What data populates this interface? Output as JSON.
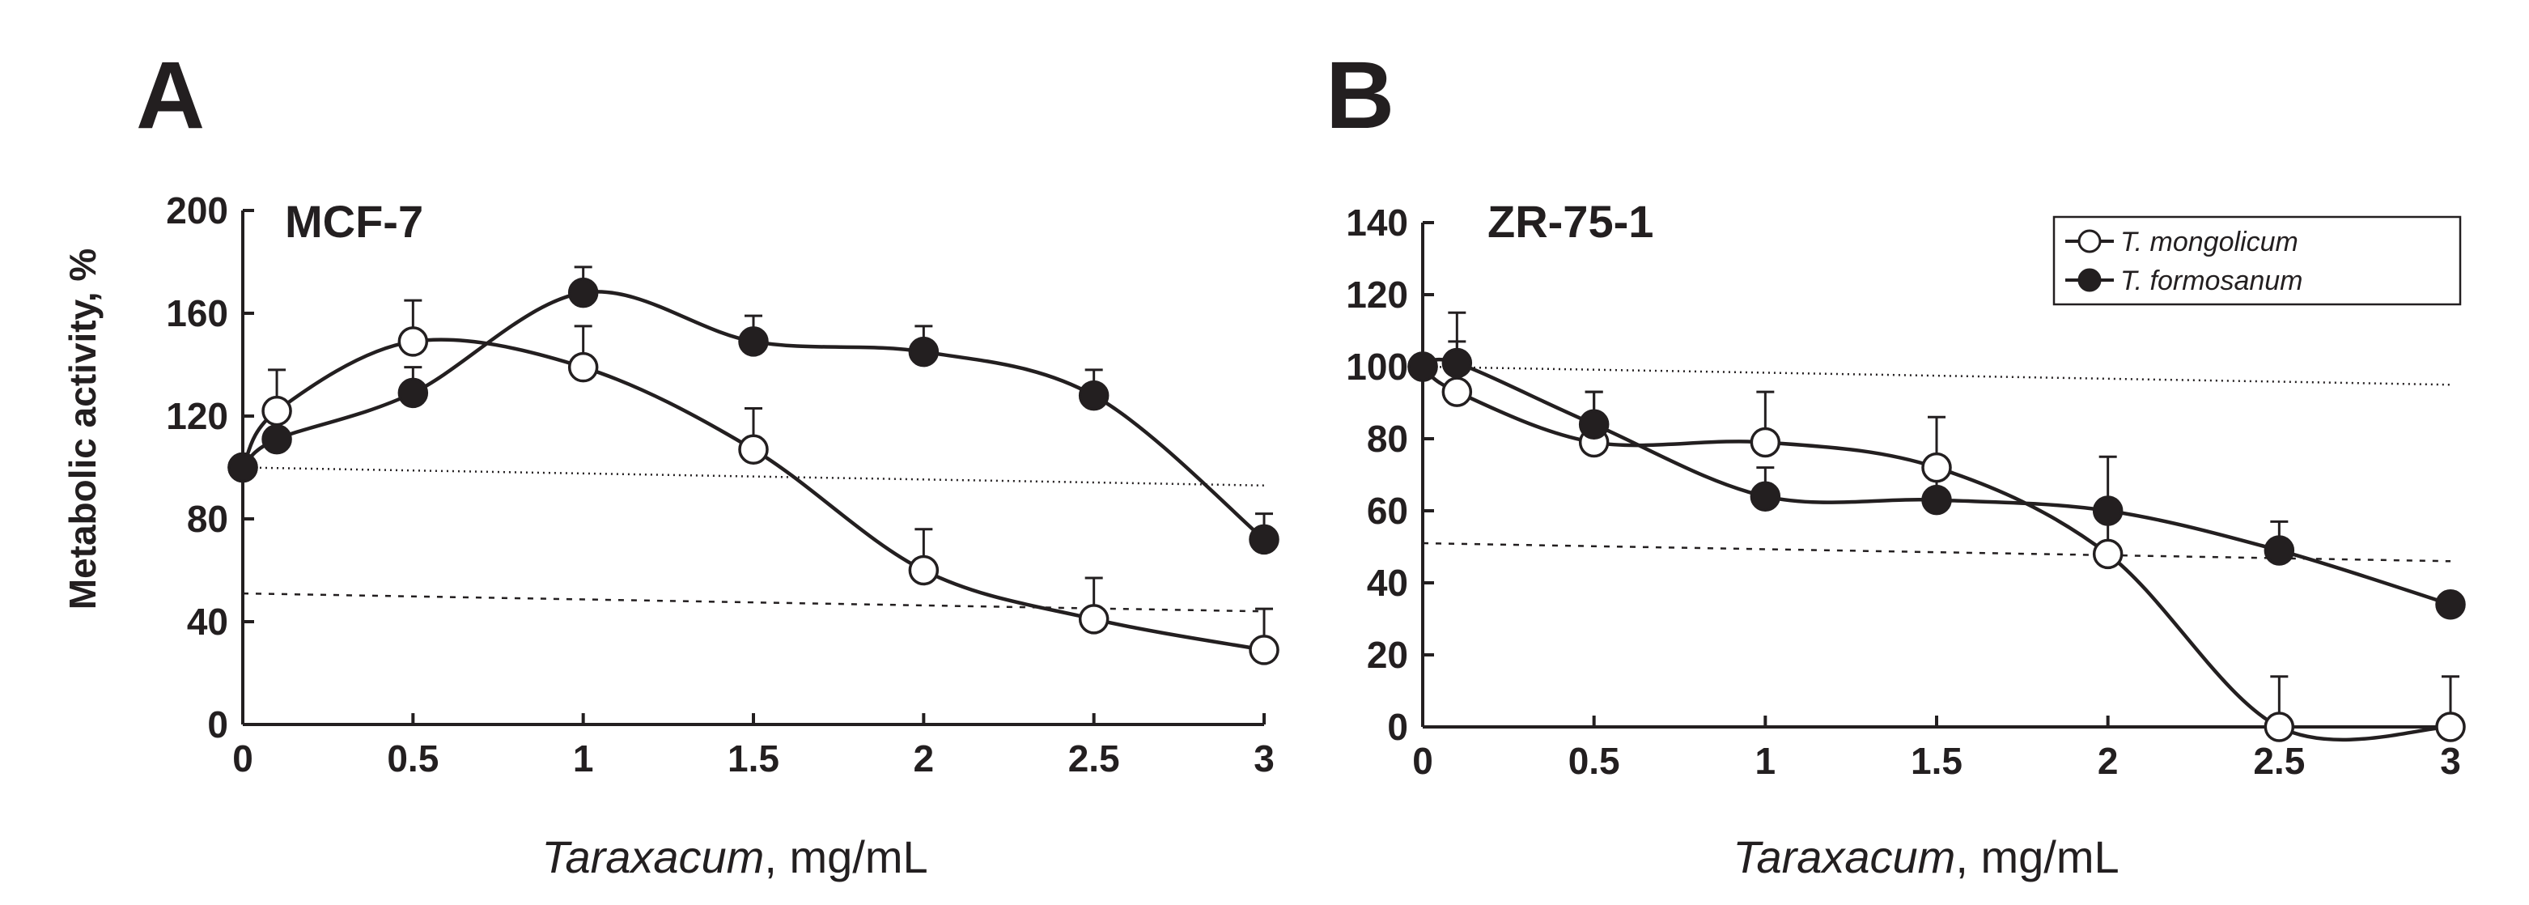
{
  "chart_data": [
    {
      "panel": "A",
      "type": "line",
      "title": "MCF-7",
      "xlabel_italic": "Taraxacum",
      "xlabel_rest": ", mg/mL",
      "ylabel": "Metabolic activity, %",
      "xlim": [
        0,
        3
      ],
      "ylim": [
        0,
        200
      ],
      "xticks": [
        0,
        0.5,
        1,
        1.5,
        2,
        2.5,
        3
      ],
      "xtick_labels": [
        "0",
        "0.5",
        "1",
        "1.5",
        "2",
        "2.5",
        "3"
      ],
      "yticks": [
        0,
        40,
        80,
        120,
        160,
        200
      ],
      "ytick_labels": [
        "0",
        "40",
        "80",
        "120",
        "160",
        "200"
      ],
      "reference_lines": [
        {
          "style": "dotted",
          "from": [
            0,
            100
          ],
          "to": [
            3,
            93
          ]
        },
        {
          "style": "dashed",
          "from": [
            0,
            51
          ],
          "to": [
            3,
            44
          ]
        }
      ],
      "series": [
        {
          "name": "T. mongolicum",
          "marker": "open-circle",
          "x": [
            0,
            0.1,
            0.5,
            1,
            1.5,
            2,
            2.5,
            3
          ],
          "y": [
            100,
            122,
            149,
            139,
            107,
            60,
            41,
            29
          ],
          "err": [
            0,
            16,
            16,
            16,
            16,
            16,
            16,
            16
          ]
        },
        {
          "name": "T. formosanum",
          "marker": "filled-circle",
          "x": [
            0,
            0.1,
            0.5,
            1,
            1.5,
            2,
            2.5,
            3
          ],
          "y": [
            100,
            111,
            129,
            168,
            149,
            145,
            128,
            72
          ],
          "err": [
            0,
            10,
            10,
            10,
            10,
            10,
            10,
            10
          ]
        }
      ]
    },
    {
      "panel": "B",
      "type": "line",
      "title": "ZR-75-1",
      "xlabel_italic": "Taraxacum",
      "xlabel_rest": ", mg/mL",
      "ylabel": "",
      "xlim": [
        0,
        3
      ],
      "ylim": [
        0,
        140
      ],
      "xticks": [
        0,
        0.5,
        1,
        1.5,
        2,
        2.5,
        3
      ],
      "xtick_labels": [
        "0",
        "0.5",
        "1",
        "1.5",
        "2",
        "2.5",
        "3"
      ],
      "yticks": [
        0,
        20,
        40,
        60,
        80,
        100,
        120,
        140
      ],
      "ytick_labels": [
        "0",
        "20",
        "40",
        "60",
        "80",
        "100",
        "120",
        "140"
      ],
      "legend": {
        "position": "top-right",
        "entries": [
          "T. mongolicum",
          "T. formosanum"
        ]
      },
      "reference_lines": [
        {
          "style": "dotted",
          "from": [
            0,
            100
          ],
          "to": [
            3,
            95
          ]
        },
        {
          "style": "dashed",
          "from": [
            0,
            51
          ],
          "to": [
            3,
            46
          ]
        }
      ],
      "series": [
        {
          "name": "T. mongolicum",
          "marker": "open-circle",
          "x": [
            0,
            0.1,
            0.5,
            1,
            1.5,
            2,
            2.5,
            3
          ],
          "y": [
            100,
            93,
            79,
            79,
            72,
            48,
            0,
            0
          ],
          "err": [
            0,
            14,
            14,
            14,
            14,
            14,
            14,
            14
          ]
        },
        {
          "name": "T. formosanum",
          "marker": "filled-circle",
          "x": [
            0,
            0.1,
            0.5,
            1,
            1.5,
            2,
            2.5,
            3
          ],
          "y": [
            100,
            101,
            84,
            64,
            63,
            60,
            49,
            34
          ],
          "err": [
            0,
            14,
            9,
            8,
            9,
            15,
            8,
            0
          ]
        }
      ]
    }
  ]
}
